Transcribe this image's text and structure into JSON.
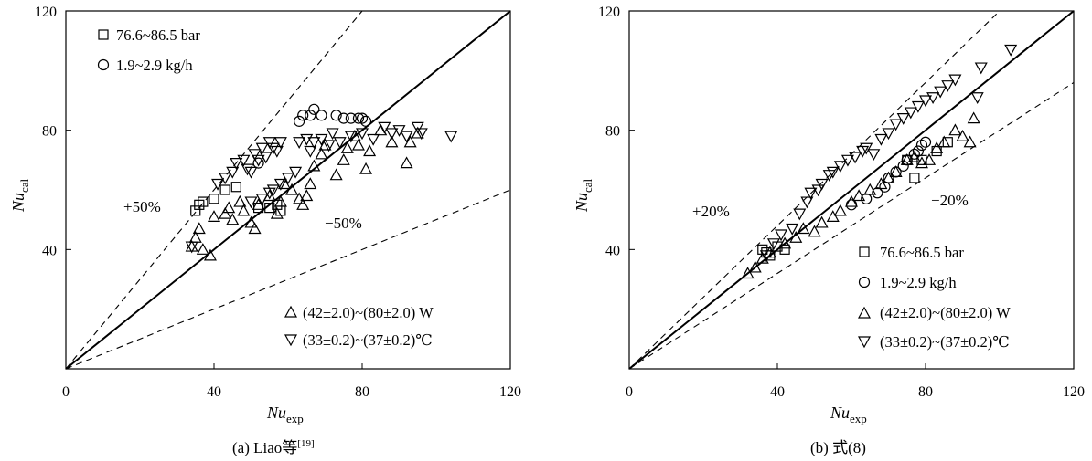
{
  "chart_data": [
    {
      "type": "scatter",
      "caption": {
        "text": "(a) Liao等",
        "ref": "[19]"
      },
      "xlabel": {
        "main": "Nu",
        "sub": "exp"
      },
      "ylabel": {
        "main": "Nu",
        "sub": "cal"
      },
      "xlim": [
        0,
        120
      ],
      "ylim": [
        0,
        120
      ],
      "xticks": [
        "0",
        "40",
        "80",
        "120"
      ],
      "yticks": [
        "40",
        "80",
        "120"
      ],
      "grid": false,
      "reference_lines": [
        {
          "slope": 1.0,
          "style": "solid"
        },
        {
          "slope": 1.5,
          "style": "dashed",
          "label": "+50%"
        },
        {
          "slope": 0.5,
          "style": "dashed",
          "label": "−50%"
        }
      ],
      "legend_placement": [
        "top-left",
        "bottom-right"
      ],
      "series": [
        {
          "name": "76.6~86.5 bar",
          "marker": "square",
          "points": [
            [
              35,
              53
            ],
            [
              36,
              55
            ],
            [
              37,
              56
            ],
            [
              40,
              57
            ],
            [
              43,
              60
            ],
            [
              46,
              61
            ],
            [
              52,
              54
            ],
            [
              55,
              54
            ],
            [
              57,
              55
            ],
            [
              58,
              53
            ]
          ]
        },
        {
          "name": "1.9~2.9 kg/h",
          "marker": "circle",
          "points": [
            [
              52,
              69
            ],
            [
              63,
              83
            ],
            [
              64,
              85
            ],
            [
              66,
              85
            ],
            [
              67,
              87
            ],
            [
              69,
              85
            ],
            [
              73,
              85
            ],
            [
              75,
              84
            ],
            [
              77,
              84
            ],
            [
              79,
              84
            ],
            [
              80,
              84
            ],
            [
              81,
              83
            ]
          ]
        },
        {
          "name": "(42±2.0)~(80±2.0) W",
          "marker": "triangle-up",
          "points": [
            [
              34,
              41
            ],
            [
              35,
              44
            ],
            [
              36,
              47
            ],
            [
              37,
              40
            ],
            [
              39,
              38
            ],
            [
              40,
              51
            ],
            [
              43,
              52
            ],
            [
              44,
              54
            ],
            [
              45,
              50
            ],
            [
              47,
              56
            ],
            [
              48,
              53
            ],
            [
              50,
              49
            ],
            [
              51,
              47
            ],
            [
              52,
              55
            ],
            [
              55,
              58
            ],
            [
              57,
              52
            ],
            [
              58,
              56
            ],
            [
              59,
              62
            ],
            [
              61,
              60
            ],
            [
              63,
              57
            ],
            [
              64,
              55
            ],
            [
              65,
              58
            ],
            [
              66,
              62
            ],
            [
              67,
              68
            ],
            [
              69,
              72
            ],
            [
              70,
              75
            ],
            [
              73,
              65
            ],
            [
              75,
              70
            ],
            [
              76,
              74
            ],
            [
              78,
              78
            ],
            [
              79,
              75
            ],
            [
              81,
              67
            ],
            [
              82,
              73
            ],
            [
              85,
              80
            ],
            [
              88,
              76
            ],
            [
              92,
              69
            ],
            [
              93,
              76
            ],
            [
              95,
              79
            ]
          ]
        },
        {
          "name": "(33±0.2)~(37±0.2)℃",
          "marker": "triangle-down",
          "points": [
            [
              34,
              41
            ],
            [
              41,
              62
            ],
            [
              43,
              64
            ],
            [
              45,
              66
            ],
            [
              46,
              69
            ],
            [
              48,
              70
            ],
            [
              49,
              67
            ],
            [
              50,
              66
            ],
            [
              51,
              72
            ],
            [
              52,
              70
            ],
            [
              53,
              74
            ],
            [
              54,
              71
            ],
            [
              55,
              76
            ],
            [
              56,
              74
            ],
            [
              57,
              73
            ],
            [
              58,
              76
            ],
            [
              50,
              56
            ],
            [
              53,
              57
            ],
            [
              55,
              59
            ],
            [
              56,
              60
            ],
            [
              58,
              62
            ],
            [
              60,
              64
            ],
            [
              62,
              66
            ],
            [
              63,
              76
            ],
            [
              65,
              77
            ],
            [
              66,
              73
            ],
            [
              67,
              76
            ],
            [
              69,
              77
            ],
            [
              71,
              75
            ],
            [
              72,
              79
            ],
            [
              74,
              76
            ],
            [
              77,
              78
            ],
            [
              80,
              79
            ],
            [
              83,
              77
            ],
            [
              86,
              81
            ],
            [
              88,
              79
            ],
            [
              90,
              80
            ],
            [
              92,
              78
            ],
            [
              95,
              81
            ],
            [
              96,
              79
            ],
            [
              104,
              78
            ]
          ]
        }
      ]
    },
    {
      "type": "scatter",
      "caption": {
        "text": "(b) 式(8)",
        "ref": ""
      },
      "xlabel": {
        "main": "Nu",
        "sub": "exp"
      },
      "ylabel": {
        "main": "Nu",
        "sub": "cal"
      },
      "xlim": [
        0,
        120
      ],
      "ylim": [
        0,
        120
      ],
      "xticks": [
        "0",
        "40",
        "80",
        "120"
      ],
      "yticks": [
        "40",
        "80",
        "120"
      ],
      "grid": false,
      "reference_lines": [
        {
          "slope": 1.0,
          "style": "solid"
        },
        {
          "slope": 1.2,
          "style": "dashed",
          "label": "+20%"
        },
        {
          "slope": 0.8,
          "style": "dashed",
          "label": "−20%"
        }
      ],
      "legend_placement": [
        "bottom-right"
      ],
      "series": [
        {
          "name": "76.6~86.5 bar",
          "marker": "square",
          "points": [
            [
              36,
              40
            ],
            [
              37,
              39
            ],
            [
              38,
              38
            ],
            [
              40,
              41
            ],
            [
              42,
              40
            ],
            [
              75,
              70
            ],
            [
              77,
              64
            ],
            [
              79,
              70
            ],
            [
              83,
              73
            ],
            [
              86,
              76
            ]
          ]
        },
        {
          "name": "1.9~2.9 kg/h",
          "marker": "circle",
          "points": [
            [
              60,
              55
            ],
            [
              64,
              57
            ],
            [
              67,
              59
            ],
            [
              69,
              61
            ],
            [
              70,
              64
            ],
            [
              72,
              66
            ],
            [
              74,
              68
            ],
            [
              75,
              70
            ],
            [
              77,
              72
            ],
            [
              78,
              73
            ],
            [
              79,
              75
            ],
            [
              80,
              76
            ]
          ]
        },
        {
          "name": "(42±2.0)~(80±2.0) W",
          "marker": "triangle-up",
          "points": [
            [
              32,
              32
            ],
            [
              34,
              34
            ],
            [
              36,
              37
            ],
            [
              38,
              39
            ],
            [
              42,
              42
            ],
            [
              45,
              44
            ],
            [
              47,
              47
            ],
            [
              50,
              46
            ],
            [
              52,
              49
            ],
            [
              55,
              51
            ],
            [
              57,
              53
            ],
            [
              60,
              56
            ],
            [
              62,
              58
            ],
            [
              65,
              60
            ],
            [
              68,
              62
            ],
            [
              70,
              64
            ],
            [
              72,
              66
            ],
            [
              75,
              70
            ],
            [
              77,
              71
            ],
            [
              79,
              69
            ],
            [
              81,
              70
            ],
            [
              83,
              74
            ],
            [
              85,
              76
            ],
            [
              88,
              80
            ],
            [
              90,
              78
            ],
            [
              92,
              76
            ],
            [
              93,
              84
            ]
          ]
        },
        {
          "name": "(33±0.2)~(37±0.2)℃",
          "marker": "triangle-down",
          "points": [
            [
              37,
              38
            ],
            [
              39,
              42
            ],
            [
              41,
              45
            ],
            [
              44,
              47
            ],
            [
              46,
              52
            ],
            [
              48,
              56
            ],
            [
              49,
              59
            ],
            [
              51,
              60
            ],
            [
              52,
              62
            ],
            [
              54,
              65
            ],
            [
              55,
              66
            ],
            [
              57,
              68
            ],
            [
              59,
              70
            ],
            [
              61,
              71
            ],
            [
              63,
              73
            ],
            [
              64,
              74
            ],
            [
              66,
              72
            ],
            [
              68,
              77
            ],
            [
              70,
              79
            ],
            [
              72,
              82
            ],
            [
              74,
              84
            ],
            [
              76,
              86
            ],
            [
              78,
              88
            ],
            [
              80,
              90
            ],
            [
              82,
              91
            ],
            [
              84,
              93
            ],
            [
              86,
              95
            ],
            [
              88,
              97
            ],
            [
              94,
              91
            ],
            [
              95,
              101
            ],
            [
              103,
              107
            ]
          ]
        }
      ]
    }
  ]
}
